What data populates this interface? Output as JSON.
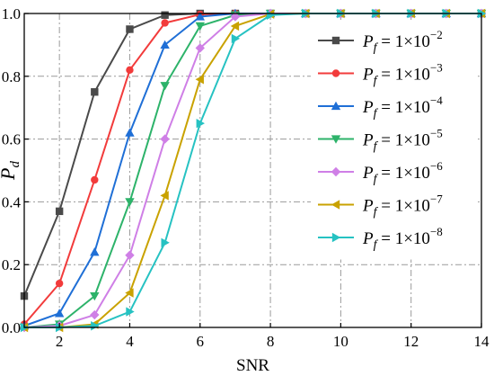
{
  "chart_data": {
    "type": "line",
    "xlabel": "SNR",
    "ylabel": "P_d",
    "ylabel_main": "P",
    "ylabel_sub": "d",
    "xlim": [
      1,
      14
    ],
    "ylim": [
      0,
      1.0
    ],
    "xticks": [
      2,
      4,
      6,
      8,
      10,
      12,
      14
    ],
    "xtick_labels": [
      "2",
      "4",
      "6",
      "8",
      "10",
      "12",
      "14"
    ],
    "yticks": [
      0.0,
      0.2,
      0.4,
      0.6,
      0.8,
      1.0
    ],
    "ytick_labels": [
      "0.0",
      "0.2",
      "0.4",
      "0.6",
      "0.8",
      "1.0"
    ],
    "grid": true,
    "grid_style": "dash-dot",
    "legend_position": "right",
    "x": [
      1,
      2,
      3,
      4,
      5,
      6,
      7,
      8,
      9,
      10,
      11,
      12,
      13,
      14
    ],
    "series": [
      {
        "name": "P_f = 1×10^-2",
        "label_main": "P",
        "label_sub": "f",
        "label_mid": " = 1×10",
        "label_exp": "−2",
        "color": "#4a4a4a",
        "marker": "square",
        "values": [
          0.1,
          0.37,
          0.75,
          0.95,
          0.995,
          1.0,
          1.0,
          1.0,
          1.0,
          1.0,
          1.0,
          1.0,
          1.0,
          1.0
        ]
      },
      {
        "name": "P_f = 1×10^-3",
        "label_main": "P",
        "label_sub": "f",
        "label_mid": " = 1×10",
        "label_exp": "−3",
        "color": "#f23b3b",
        "marker": "circle",
        "values": [
          0.01,
          0.14,
          0.47,
          0.82,
          0.97,
          0.997,
          1.0,
          1.0,
          1.0,
          1.0,
          1.0,
          1.0,
          1.0,
          1.0
        ]
      },
      {
        "name": "P_f = 1×10^-4",
        "label_main": "P",
        "label_sub": "f",
        "label_mid": " = 1×10",
        "label_exp": "−4",
        "color": "#1f6fd6",
        "marker": "triangle-up",
        "values": [
          0.005,
          0.045,
          0.24,
          0.62,
          0.9,
          0.99,
          1.0,
          1.0,
          1.0,
          1.0,
          1.0,
          1.0,
          1.0,
          1.0
        ]
      },
      {
        "name": "P_f = 1×10^-5",
        "label_main": "P",
        "label_sub": "f",
        "label_mid": " = 1×10",
        "label_exp": "−5",
        "color": "#2db36a",
        "marker": "triangle-down",
        "values": [
          0.0,
          0.01,
          0.1,
          0.4,
          0.77,
          0.96,
          0.995,
          1.0,
          1.0,
          1.0,
          1.0,
          1.0,
          1.0,
          1.0
        ]
      },
      {
        "name": "P_f = 1×10^-6",
        "label_main": "P",
        "label_sub": "f",
        "label_mid": " = 1×10",
        "label_exp": "−6",
        "color": "#cf7fe6",
        "marker": "diamond",
        "values": [
          0.0,
          0.005,
          0.04,
          0.23,
          0.6,
          0.89,
          0.99,
          1.0,
          1.0,
          1.0,
          1.0,
          1.0,
          1.0,
          1.0
        ]
      },
      {
        "name": "P_f = 1×10^-7",
        "label_main": "P",
        "label_sub": "f",
        "label_mid": " = 1×10",
        "label_exp": "−7",
        "color": "#c9a200",
        "marker": "triangle-left",
        "values": [
          0.0,
          0.0,
          0.01,
          0.11,
          0.42,
          0.79,
          0.96,
          0.998,
          1.0,
          1.0,
          1.0,
          1.0,
          1.0,
          1.0
        ]
      },
      {
        "name": "P_f = 1×10^-8",
        "label_main": "P",
        "label_sub": "f",
        "label_mid": " = 1×10",
        "label_exp": "−8",
        "color": "#26c2c2",
        "marker": "triangle-right",
        "values": [
          0.0,
          0.0,
          0.005,
          0.05,
          0.27,
          0.65,
          0.92,
          0.995,
          1.0,
          1.0,
          1.0,
          1.0,
          1.0,
          1.0
        ]
      }
    ]
  }
}
